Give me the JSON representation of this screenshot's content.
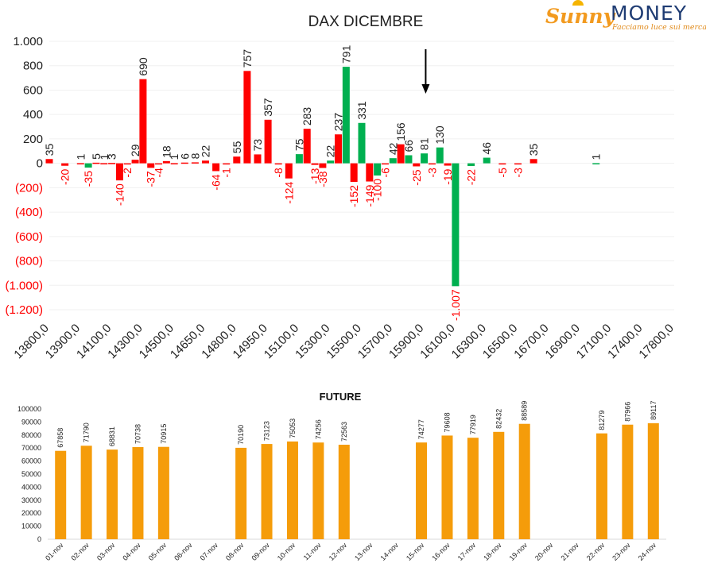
{
  "logo": {
    "brand_left": "Sunny",
    "brand_right": "MONEY",
    "tagline": "Facciamo luce sui mercati"
  },
  "colors": {
    "positive": "#00b050",
    "negative": "#ff0000",
    "future": "#f59c0a",
    "negative_label": "#ff0000",
    "grid": "#f0f0f0"
  },
  "chart_data": [
    {
      "type": "bar",
      "title": "DAX DICEMBRE",
      "ylim": [
        -1200,
        1000
      ],
      "yticks": [
        {
          "value": 1000,
          "label": "1.000"
        },
        {
          "value": 800,
          "label": "800"
        },
        {
          "value": 600,
          "label": "600"
        },
        {
          "value": 400,
          "label": "400"
        },
        {
          "value": 200,
          "label": "200"
        },
        {
          "value": 0,
          "label": "0"
        },
        {
          "value": -200,
          "label": "(200)"
        },
        {
          "value": -400,
          "label": "(400)"
        },
        {
          "value": -600,
          "label": "(600)"
        },
        {
          "value": -800,
          "label": "(800)"
        },
        {
          "value": -1000,
          "label": "(1.000)"
        },
        {
          "value": -1200,
          "label": "(1.200)"
        }
      ],
      "x_range": [
        13800,
        17800
      ],
      "xticks": [
        {
          "value": 13800,
          "label": "13800,0"
        },
        {
          "value": 13900,
          "label": "13900,0"
        },
        {
          "value": 14100,
          "label": "14100,0"
        },
        {
          "value": 14300,
          "label": "14300,0"
        },
        {
          "value": 14500,
          "label": "14500,0"
        },
        {
          "value": 14650,
          "label": "14650,0"
        },
        {
          "value": 14800,
          "label": "14800,0"
        },
        {
          "value": 14950,
          "label": "14950,0"
        },
        {
          "value": 15100,
          "label": "15100,0"
        },
        {
          "value": 15300,
          "label": "15300,0"
        },
        {
          "value": 15500,
          "label": "15500,0"
        },
        {
          "value": 15700,
          "label": "15700,0"
        },
        {
          "value": 15900,
          "label": "15900,0"
        },
        {
          "value": 16100,
          "label": "16100,0"
        },
        {
          "value": 16300,
          "label": "16300,0"
        },
        {
          "value": 16500,
          "label": "16500,0"
        },
        {
          "value": 16700,
          "label": "16700,0"
        },
        {
          "value": 16900,
          "label": "16900,0"
        },
        {
          "value": 17100,
          "label": "17100,0"
        },
        {
          "value": 17400,
          "label": "17400,0"
        },
        {
          "value": 17800,
          "label": "17800,0"
        }
      ],
      "arrow_strike": 15950,
      "bars": [
        {
          "x": 13800,
          "value": 35,
          "label": "35",
          "color": "red"
        },
        {
          "x": 13850,
          "value": -20,
          "label": "-20",
          "color": "red"
        },
        {
          "x": 13900,
          "value": 1,
          "label": "1",
          "color": "red"
        },
        {
          "x": 13950,
          "value": -35,
          "label": "-35",
          "color": "green"
        },
        {
          "x": 14000,
          "value": 5,
          "label": "5",
          "color": "red"
        },
        {
          "x": 14050,
          "value": 1,
          "label": "1",
          "color": "red"
        },
        {
          "x": 14100,
          "value": 3,
          "label": "3",
          "color": "red"
        },
        {
          "x": 14150,
          "value": -140,
          "label": "-140",
          "color": "red"
        },
        {
          "x": 14200,
          "value": -2,
          "label": "-2",
          "color": "red"
        },
        {
          "x": 14250,
          "value": 29,
          "label": "29",
          "color": "red"
        },
        {
          "x": 14300,
          "value": 690,
          "label": "690",
          "color": "red"
        },
        {
          "x": 14350,
          "value": -37,
          "label": "-37",
          "color": "red"
        },
        {
          "x": 14400,
          "value": -4,
          "label": "-4",
          "color": "red"
        },
        {
          "x": 14450,
          "value": 18,
          "label": "18",
          "color": "red"
        },
        {
          "x": 14500,
          "value": 1,
          "label": "1",
          "color": "red"
        },
        {
          "x": 14550,
          "value": 6,
          "label": "6",
          "color": "red"
        },
        {
          "x": 14600,
          "value": 8,
          "label": "8",
          "color": "red"
        },
        {
          "x": 14650,
          "value": 22,
          "label": "22",
          "color": "red"
        },
        {
          "x": 14700,
          "value": -64,
          "label": "-64",
          "color": "red"
        },
        {
          "x": 14750,
          "value": -1,
          "label": "-1",
          "color": "red"
        },
        {
          "x": 14800,
          "value": 55,
          "label": "55",
          "color": "red"
        },
        {
          "x": 14850,
          "value": 757,
          "label": "757",
          "color": "red"
        },
        {
          "x": 14900,
          "value": 73,
          "label": "73",
          "color": "red"
        },
        {
          "x": 14950,
          "value": 357,
          "label": "357",
          "color": "red"
        },
        {
          "x": 15000,
          "value": -8,
          "label": "-8",
          "color": "red"
        },
        {
          "x": 15050,
          "value": -124,
          "label": "-124",
          "color": "red"
        },
        {
          "x": 15100,
          "value": 75,
          "label": "75",
          "color": "green"
        },
        {
          "x": 15150,
          "value": 283,
          "label": "283",
          "color": "red"
        },
        {
          "x": 15200,
          "value": -13,
          "label": "-13",
          "color": "red"
        },
        {
          "x": 15250,
          "value": -38,
          "label": "-38",
          "color": "red"
        },
        {
          "x": 15300,
          "value": 22,
          "label": "22",
          "color": "green"
        },
        {
          "x": 15350,
          "value": 237,
          "label": "237",
          "color": "red"
        },
        {
          "x": 15400,
          "value": 791,
          "label": "791",
          "color": "green"
        },
        {
          "x": 15450,
          "value": -152,
          "label": "-152",
          "color": "red"
        },
        {
          "x": 15500,
          "value": 331,
          "label": "331",
          "color": "green"
        },
        {
          "x": 15550,
          "value": -149,
          "label": "-149",
          "color": "red"
        },
        {
          "x": 15600,
          "value": -100,
          "label": "-100",
          "color": "green"
        },
        {
          "x": 15650,
          "value": -6,
          "label": "-6",
          "color": "red"
        },
        {
          "x": 15700,
          "value": 42,
          "label": "42",
          "color": "green"
        },
        {
          "x": 15750,
          "value": 156,
          "label": "156",
          "color": "red"
        },
        {
          "x": 15800,
          "value": 66,
          "label": "66",
          "color": "green"
        },
        {
          "x": 15850,
          "value": -25,
          "label": "-25",
          "color": "red"
        },
        {
          "x": 15900,
          "value": 81,
          "label": "81",
          "color": "green"
        },
        {
          "x": 15950,
          "value": -3,
          "label": "-3",
          "color": "red"
        },
        {
          "x": 16000,
          "value": 130,
          "label": "130",
          "color": "green"
        },
        {
          "x": 16050,
          "value": -19,
          "label": "-19",
          "color": "red"
        },
        {
          "x": 16100,
          "value": -1007,
          "label": "-1.007",
          "color": "green"
        },
        {
          "x": 16200,
          "value": -22,
          "label": "-22",
          "color": "green"
        },
        {
          "x": 16300,
          "value": 46,
          "label": "46",
          "color": "green"
        },
        {
          "x": 16400,
          "value": -5,
          "label": "-5",
          "color": "red"
        },
        {
          "x": 16500,
          "value": -3,
          "label": "-3",
          "color": "red"
        },
        {
          "x": 16600,
          "value": 35,
          "label": "35",
          "color": "red"
        },
        {
          "x": 17000,
          "value": 1,
          "label": "1",
          "color": "green"
        }
      ]
    },
    {
      "type": "bar",
      "title": "FUTURE",
      "ylim": [
        0,
        100000
      ],
      "yticks": [
        0,
        10000,
        20000,
        30000,
        40000,
        50000,
        60000,
        70000,
        80000,
        90000,
        100000
      ],
      "categories": [
        "01-nov",
        "02-nov",
        "03-nov",
        "04-nov",
        "05-nov",
        "06-nov",
        "07-nov",
        "08-nov",
        "09-nov",
        "10-nov",
        "11-nov",
        "12-nov",
        "13-nov",
        "14-nov",
        "15-nov",
        "16-nov",
        "17-nov",
        "18-nov",
        "19-nov",
        "20-nov",
        "21-nov",
        "22-nov",
        "23-nov",
        "24-nov"
      ],
      "values": [
        67858,
        71790,
        68831,
        70738,
        70915,
        null,
        null,
        70190,
        73123,
        75053,
        74256,
        72563,
        null,
        null,
        74277,
        79608,
        77919,
        82432,
        88589,
        null,
        null,
        81279,
        87966,
        89117
      ]
    }
  ]
}
